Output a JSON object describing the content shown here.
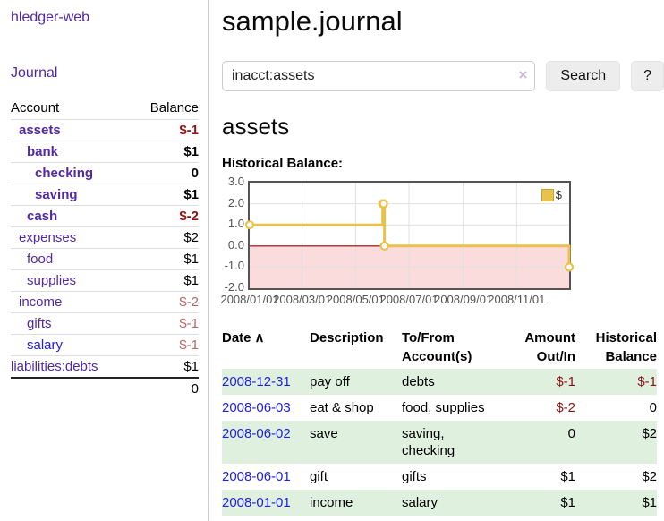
{
  "colors": {
    "link_purple": "#5229a3",
    "link_blue": "#2121dd",
    "negative": "#8c1414",
    "negative_light": "#b06868",
    "row_green": "#dff0df",
    "series_gold": "#e8c24a",
    "negative_region_pink": "#fadcdc",
    "zero_line_red": "#8b0000"
  },
  "sidebar": {
    "brand": "hledger-web",
    "nav_journal": "Journal",
    "accounts_header": {
      "account": "Account",
      "balance": "Balance"
    },
    "accounts": [
      {
        "name": "assets",
        "balance": "$-1",
        "depth": 2,
        "matched": true,
        "name_color": "purple",
        "balance_color": "neg"
      },
      {
        "name": "bank",
        "balance": "$1",
        "depth": 3,
        "matched": true,
        "name_color": "purple",
        "balance_color": "pos"
      },
      {
        "name": "checking",
        "balance": "0",
        "depth": 4,
        "matched": true,
        "name_color": "purple",
        "balance_color": "pos"
      },
      {
        "name": "saving",
        "balance": "$1",
        "depth": 4,
        "matched": true,
        "name_color": "purple",
        "balance_color": "pos"
      },
      {
        "name": "cash",
        "balance": "$-2",
        "depth": 3,
        "matched": true,
        "name_color": "purple",
        "balance_color": "neg"
      },
      {
        "name": "expenses",
        "balance": "$2",
        "depth": 2,
        "matched": false,
        "name_color": "purple",
        "balance_color": "pos"
      },
      {
        "name": "food",
        "balance": "$1",
        "depth": 3,
        "matched": false,
        "name_color": "purple",
        "balance_color": "pos"
      },
      {
        "name": "supplies",
        "balance": "$1",
        "depth": 3,
        "matched": false,
        "name_color": "purple",
        "balance_color": "pos"
      },
      {
        "name": "income",
        "balance": "$-2",
        "depth": 2,
        "matched": false,
        "name_color": "purple",
        "balance_color": "neg-light"
      },
      {
        "name": "gifts",
        "balance": "$-1",
        "depth": 3,
        "matched": false,
        "name_color": "purple",
        "balance_color": "neg-light"
      },
      {
        "name": "salary",
        "balance": "$-1",
        "depth": 3,
        "matched": false,
        "name_color": "blue",
        "balance_color": "neg-light"
      },
      {
        "name": "liabilities:debts",
        "balance": "$1",
        "depth": 1,
        "matched": false,
        "name_color": "purple",
        "balance_color": "pos"
      }
    ],
    "total": "0"
  },
  "header": {
    "title": "sample.journal"
  },
  "search": {
    "value": "inacct:assets",
    "clear_icon": "×",
    "button_label": "Search",
    "help_label": "?"
  },
  "account_page": {
    "title": "assets",
    "chart_label": "Historical Balance:"
  },
  "chart_data": {
    "type": "line",
    "style": "step",
    "title": "Historical Balance",
    "legend": {
      "label": "$",
      "position": "top-right"
    },
    "ylim": [
      -2,
      3
    ],
    "y_ticks": [
      3.0,
      2.0,
      1.0,
      0.0,
      -1.0,
      -2.0
    ],
    "x_range_days": [
      0,
      365
    ],
    "x_ticks": [
      {
        "label": "2008/01/01",
        "day": 0
      },
      {
        "label": "2008/03/01",
        "day": 60
      },
      {
        "label": "2008/05/01",
        "day": 121
      },
      {
        "label": "2008/07/01",
        "day": 182
      },
      {
        "label": "2008/09/01",
        "day": 244
      },
      {
        "label": "2008/11/01",
        "day": 305
      }
    ],
    "series": [
      {
        "name": "$",
        "color": "#e8c24a",
        "points": [
          {
            "date": "2008-01-01",
            "day": 0,
            "value": 1
          },
          {
            "date": "2008-06-01",
            "day": 152,
            "value": 2
          },
          {
            "date": "2008-06-02",
            "day": 153,
            "value": 2
          },
          {
            "date": "2008-06-03",
            "day": 154,
            "value": 0
          },
          {
            "date": "2008-12-31",
            "day": 365,
            "value": -1
          }
        ]
      }
    ],
    "grid": true,
    "negative_region_fill": "#fadcdc",
    "zero_line_color": "#8b0000"
  },
  "register": {
    "headers": [
      "Date",
      "Description",
      "To/From Account(s)",
      "Amount Out/In",
      "Historical Balance"
    ],
    "sort_indicator": "∧",
    "rows": [
      {
        "date": "2008-12-31",
        "description": "pay off",
        "accounts": "debts",
        "amount": "$-1",
        "amount_neg": true,
        "balance": "$-1",
        "balance_neg": true
      },
      {
        "date": "2008-06-03",
        "description": "eat & shop",
        "accounts": "food, supplies",
        "amount": "$-2",
        "amount_neg": true,
        "balance": "0",
        "balance_neg": false
      },
      {
        "date": "2008-06-02",
        "description": "save",
        "accounts": "saving, checking",
        "amount": "0",
        "amount_neg": false,
        "balance": "$2",
        "balance_neg": false
      },
      {
        "date": "2008-06-01",
        "description": "gift",
        "accounts": "gifts",
        "amount": "$1",
        "amount_neg": false,
        "balance": "$2",
        "balance_neg": false
      },
      {
        "date": "2008-01-01",
        "description": "income",
        "accounts": "salary",
        "amount": "$1",
        "amount_neg": false,
        "balance": "$1",
        "balance_neg": false
      }
    ]
  }
}
